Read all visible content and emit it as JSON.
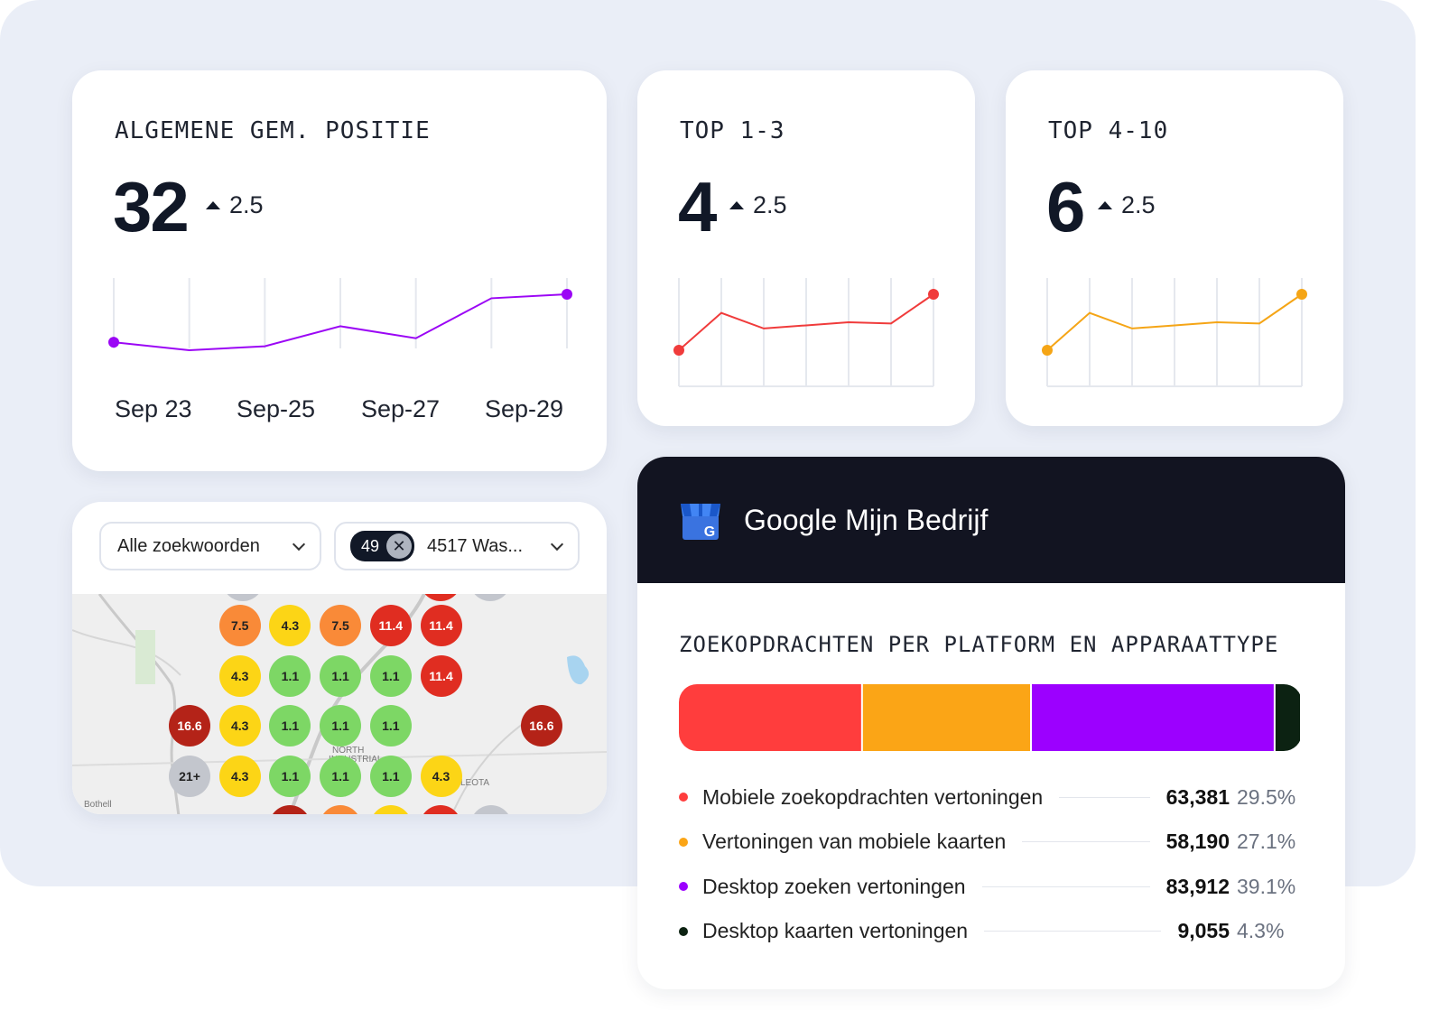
{
  "cards": {
    "avg": {
      "title": "ALGEMENE GEM. POSITIE",
      "value": "32",
      "delta": "2.5",
      "xlabels": [
        "Sep 23",
        "Sep-25",
        "Sep-27",
        "Sep-29"
      ],
      "color": "#9b06f5"
    },
    "top13": {
      "title": "TOP 1-3",
      "value": "4",
      "delta": "2.5",
      "color": "#f03b3b"
    },
    "top410": {
      "title": "TOP 4-10",
      "value": "6",
      "delta": "2.5",
      "color": "#f5a516"
    }
  },
  "map_card": {
    "keyword_select": "Alle zoekwoorden",
    "location_badge": "49",
    "location_select": "4517 Was...",
    "place_labels": [
      "Bothell",
      "LEOTA",
      "NORTH",
      "INDUSTRIAL"
    ],
    "grid": [
      [
        "",
        "7.5",
        "4.3",
        "7.5",
        "11.4",
        "11.4",
        "",
        ""
      ],
      [
        "",
        "4.3",
        "1.1",
        "1.1",
        "1.1",
        "11.4",
        "",
        ""
      ],
      [
        "16.6",
        "4.3",
        "1.1",
        "1.1",
        "1.1",
        "",
        "",
        "16.6"
      ],
      [
        "21+",
        "4.3",
        "1.1",
        "1.1",
        "1.1",
        "4.3",
        "",
        ""
      ]
    ]
  },
  "google_card": {
    "title": "Google Mijn Bedrijf",
    "section_title": "ZOEKOPDRACHTEN PER PLATFORM EN APPARAATTYPE",
    "rows": [
      {
        "label": "Mobiele zoekopdrachten vertoningen",
        "value": "63,381",
        "pct": "29.5%",
        "color": "#ff3d3d"
      },
      {
        "label": "Vertoningen van mobiele kaarten",
        "value": "58,190",
        "pct": "27.1%",
        "color": "#fba516"
      },
      {
        "label": "Desktop zoeken vertoningen",
        "value": "83,912",
        "pct": "39.1%",
        "color": "#9c00ff"
      },
      {
        "label": "Desktop kaarten vertoningen",
        "value": "9,055",
        "pct": "4.3%",
        "color": "#0c2212"
      }
    ]
  },
  "chart_data": [
    {
      "type": "line",
      "series": [
        {
          "values": [
            1,
            0,
            0.5,
            3,
            1.5,
            6.5,
            7
          ]
        }
      ],
      "x": [
        "Sep 23",
        "",
        "Sep-25",
        "",
        "Sep-27",
        "",
        "Sep-29"
      ]
    },
    {
      "type": "line",
      "series": [
        {
          "values": [
            0,
            6,
            3.5,
            4,
            4.5,
            4.3,
            9
          ]
        }
      ]
    },
    {
      "type": "line",
      "series": [
        {
          "values": [
            0,
            6,
            3.5,
            4,
            4.5,
            4.3,
            9
          ]
        }
      ]
    },
    {
      "type": "bar",
      "categories": [
        "Mobiele zoekopdrachten vertoningen",
        "Vertoningen van mobiele kaarten",
        "Desktop zoeken vertoningen",
        "Desktop kaarten vertoningen"
      ],
      "values": [
        63381,
        58190,
        83912,
        9055
      ]
    }
  ]
}
